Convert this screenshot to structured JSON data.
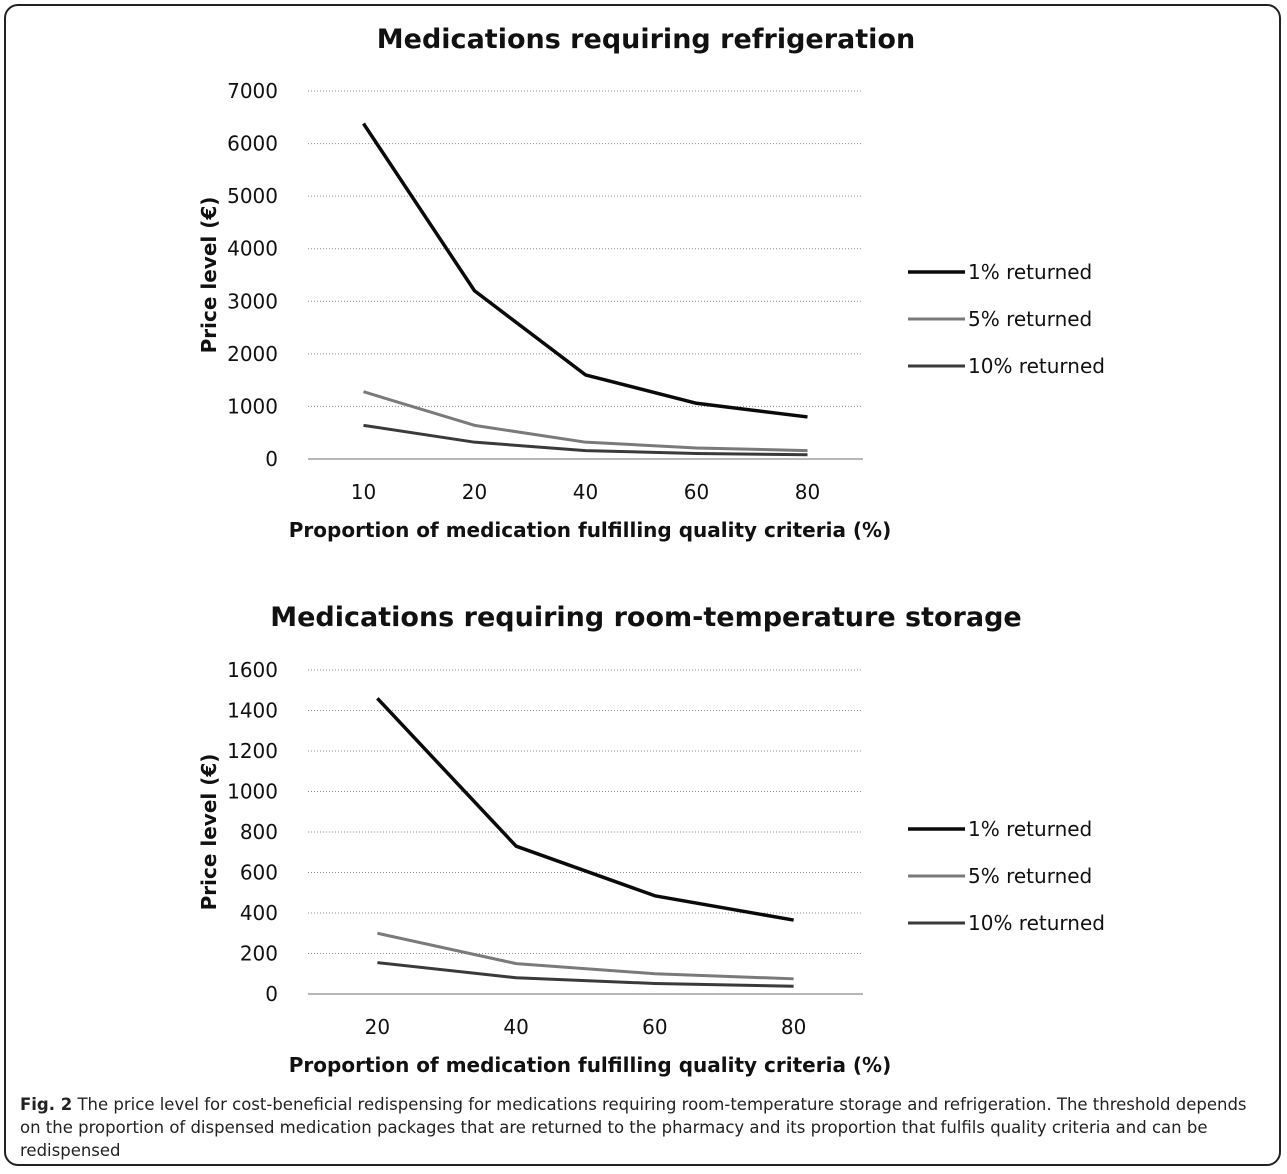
{
  "colors": {
    "1% returned": "#0a0a0a",
    "5% returned": "#7a7a7a",
    "10% returned": "#3a3a3a"
  },
  "chart_data": [
    {
      "type": "line",
      "title": "Medications requiring refrigeration",
      "xlabel": "Proportion of medication fulfilling quality criteria (%)",
      "ylabel": "Price level (€)",
      "categories": [
        "10",
        "20",
        "40",
        "60",
        "80"
      ],
      "ylim": [
        0,
        7000
      ],
      "yticks": [
        0,
        1000,
        2000,
        3000,
        4000,
        5000,
        6000,
        7000
      ],
      "grid": true,
      "legend_position": "right",
      "series": [
        {
          "name": "1% returned",
          "values": [
            6380,
            3200,
            1600,
            1060,
            800
          ]
        },
        {
          "name": "5% returned",
          "values": [
            1280,
            640,
            320,
            210,
            160
          ]
        },
        {
          "name": "10% returned",
          "values": [
            640,
            320,
            160,
            105,
            80
          ]
        }
      ]
    },
    {
      "type": "line",
      "title": "Medications requiring room-temperature storage",
      "xlabel": "Proportion of medication fulfilling quality criteria (%)",
      "ylabel": "Price level (€)",
      "categories": [
        "20",
        "40",
        "60",
        "80"
      ],
      "ylim": [
        0,
        1600
      ],
      "yticks": [
        0,
        200,
        400,
        600,
        800,
        1000,
        1200,
        1400,
        1600
      ],
      "grid": true,
      "legend_position": "right",
      "series": [
        {
          "name": "1% returned",
          "values": [
            1460,
            730,
            485,
            365
          ]
        },
        {
          "name": "5% returned",
          "values": [
            300,
            150,
            100,
            75
          ]
        },
        {
          "name": "10% returned",
          "values": [
            155,
            80,
            52,
            38
          ]
        }
      ]
    }
  ],
  "caption": {
    "label": "Fig. 2",
    "text": " The price level for cost-beneficial redispensing for medications requiring room-temperature storage and refrigeration. The threshold depends on the proportion of dispensed medication packages that are returned to the pharmacy and its proportion that fulfils quality criteria and can be redispensed"
  }
}
